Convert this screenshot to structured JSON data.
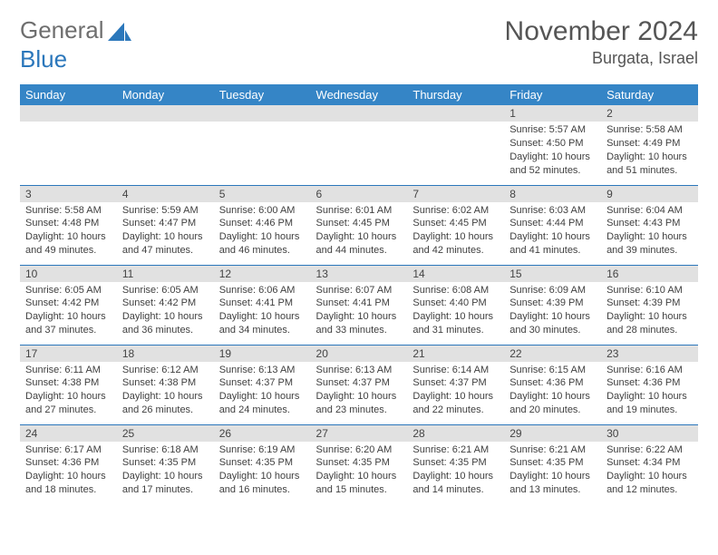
{
  "brand": {
    "part1": "General",
    "part2": "Blue"
  },
  "title": {
    "month": "November 2024",
    "location": "Burgata, Israel"
  },
  "colors": {
    "header_bg": "#3585c6",
    "header_text": "#ffffff",
    "daynum_bg": "#e1e1e1",
    "border": "#2b77bb",
    "page_bg": "#ffffff",
    "logo_gray": "#6e6e6e",
    "logo_blue": "#2b77bb"
  },
  "dayNames": [
    "Sunday",
    "Monday",
    "Tuesday",
    "Wednesday",
    "Thursday",
    "Friday",
    "Saturday"
  ],
  "weeks": [
    [
      {
        "num": "",
        "sunrise": "",
        "sunset": "",
        "daylight": ""
      },
      {
        "num": "",
        "sunrise": "",
        "sunset": "",
        "daylight": ""
      },
      {
        "num": "",
        "sunrise": "",
        "sunset": "",
        "daylight": ""
      },
      {
        "num": "",
        "sunrise": "",
        "sunset": "",
        "daylight": ""
      },
      {
        "num": "",
        "sunrise": "",
        "sunset": "",
        "daylight": ""
      },
      {
        "num": "1",
        "sunrise": "Sunrise: 5:57 AM",
        "sunset": "Sunset: 4:50 PM",
        "daylight": "Daylight: 10 hours and 52 minutes."
      },
      {
        "num": "2",
        "sunrise": "Sunrise: 5:58 AM",
        "sunset": "Sunset: 4:49 PM",
        "daylight": "Daylight: 10 hours and 51 minutes."
      }
    ],
    [
      {
        "num": "3",
        "sunrise": "Sunrise: 5:58 AM",
        "sunset": "Sunset: 4:48 PM",
        "daylight": "Daylight: 10 hours and 49 minutes."
      },
      {
        "num": "4",
        "sunrise": "Sunrise: 5:59 AM",
        "sunset": "Sunset: 4:47 PM",
        "daylight": "Daylight: 10 hours and 47 minutes."
      },
      {
        "num": "5",
        "sunrise": "Sunrise: 6:00 AM",
        "sunset": "Sunset: 4:46 PM",
        "daylight": "Daylight: 10 hours and 46 minutes."
      },
      {
        "num": "6",
        "sunrise": "Sunrise: 6:01 AM",
        "sunset": "Sunset: 4:45 PM",
        "daylight": "Daylight: 10 hours and 44 minutes."
      },
      {
        "num": "7",
        "sunrise": "Sunrise: 6:02 AM",
        "sunset": "Sunset: 4:45 PM",
        "daylight": "Daylight: 10 hours and 42 minutes."
      },
      {
        "num": "8",
        "sunrise": "Sunrise: 6:03 AM",
        "sunset": "Sunset: 4:44 PM",
        "daylight": "Daylight: 10 hours and 41 minutes."
      },
      {
        "num": "9",
        "sunrise": "Sunrise: 6:04 AM",
        "sunset": "Sunset: 4:43 PM",
        "daylight": "Daylight: 10 hours and 39 minutes."
      }
    ],
    [
      {
        "num": "10",
        "sunrise": "Sunrise: 6:05 AM",
        "sunset": "Sunset: 4:42 PM",
        "daylight": "Daylight: 10 hours and 37 minutes."
      },
      {
        "num": "11",
        "sunrise": "Sunrise: 6:05 AM",
        "sunset": "Sunset: 4:42 PM",
        "daylight": "Daylight: 10 hours and 36 minutes."
      },
      {
        "num": "12",
        "sunrise": "Sunrise: 6:06 AM",
        "sunset": "Sunset: 4:41 PM",
        "daylight": "Daylight: 10 hours and 34 minutes."
      },
      {
        "num": "13",
        "sunrise": "Sunrise: 6:07 AM",
        "sunset": "Sunset: 4:41 PM",
        "daylight": "Daylight: 10 hours and 33 minutes."
      },
      {
        "num": "14",
        "sunrise": "Sunrise: 6:08 AM",
        "sunset": "Sunset: 4:40 PM",
        "daylight": "Daylight: 10 hours and 31 minutes."
      },
      {
        "num": "15",
        "sunrise": "Sunrise: 6:09 AM",
        "sunset": "Sunset: 4:39 PM",
        "daylight": "Daylight: 10 hours and 30 minutes."
      },
      {
        "num": "16",
        "sunrise": "Sunrise: 6:10 AM",
        "sunset": "Sunset: 4:39 PM",
        "daylight": "Daylight: 10 hours and 28 minutes."
      }
    ],
    [
      {
        "num": "17",
        "sunrise": "Sunrise: 6:11 AM",
        "sunset": "Sunset: 4:38 PM",
        "daylight": "Daylight: 10 hours and 27 minutes."
      },
      {
        "num": "18",
        "sunrise": "Sunrise: 6:12 AM",
        "sunset": "Sunset: 4:38 PM",
        "daylight": "Daylight: 10 hours and 26 minutes."
      },
      {
        "num": "19",
        "sunrise": "Sunrise: 6:13 AM",
        "sunset": "Sunset: 4:37 PM",
        "daylight": "Daylight: 10 hours and 24 minutes."
      },
      {
        "num": "20",
        "sunrise": "Sunrise: 6:13 AM",
        "sunset": "Sunset: 4:37 PM",
        "daylight": "Daylight: 10 hours and 23 minutes."
      },
      {
        "num": "21",
        "sunrise": "Sunrise: 6:14 AM",
        "sunset": "Sunset: 4:37 PM",
        "daylight": "Daylight: 10 hours and 22 minutes."
      },
      {
        "num": "22",
        "sunrise": "Sunrise: 6:15 AM",
        "sunset": "Sunset: 4:36 PM",
        "daylight": "Daylight: 10 hours and 20 minutes."
      },
      {
        "num": "23",
        "sunrise": "Sunrise: 6:16 AM",
        "sunset": "Sunset: 4:36 PM",
        "daylight": "Daylight: 10 hours and 19 minutes."
      }
    ],
    [
      {
        "num": "24",
        "sunrise": "Sunrise: 6:17 AM",
        "sunset": "Sunset: 4:36 PM",
        "daylight": "Daylight: 10 hours and 18 minutes."
      },
      {
        "num": "25",
        "sunrise": "Sunrise: 6:18 AM",
        "sunset": "Sunset: 4:35 PM",
        "daylight": "Daylight: 10 hours and 17 minutes."
      },
      {
        "num": "26",
        "sunrise": "Sunrise: 6:19 AM",
        "sunset": "Sunset: 4:35 PM",
        "daylight": "Daylight: 10 hours and 16 minutes."
      },
      {
        "num": "27",
        "sunrise": "Sunrise: 6:20 AM",
        "sunset": "Sunset: 4:35 PM",
        "daylight": "Daylight: 10 hours and 15 minutes."
      },
      {
        "num": "28",
        "sunrise": "Sunrise: 6:21 AM",
        "sunset": "Sunset: 4:35 PM",
        "daylight": "Daylight: 10 hours and 14 minutes."
      },
      {
        "num": "29",
        "sunrise": "Sunrise: 6:21 AM",
        "sunset": "Sunset: 4:35 PM",
        "daylight": "Daylight: 10 hours and 13 minutes."
      },
      {
        "num": "30",
        "sunrise": "Sunrise: 6:22 AM",
        "sunset": "Sunset: 4:34 PM",
        "daylight": "Daylight: 10 hours and 12 minutes."
      }
    ]
  ]
}
